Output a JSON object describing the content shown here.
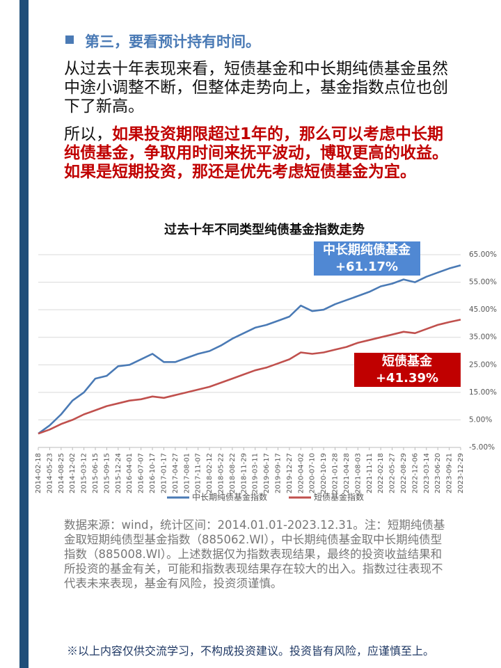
{
  "heading": "第三，要看预计持有时间。",
  "paragraph": "从过去十年表现来看，短债基金和中长期纯债基金虽然中途小调整不断，但整体走势向上，基金指数点位也创下了新高。",
  "conclusion": {
    "lead": "所以，",
    "highlight": "如果投资期限超过1年的，那么可以考虑中长期纯债基金，争取用时间来抚平波动，博取更高的收益。如果是短期投资，那还是优先考虑短债基金为宜。"
  },
  "chart_data": {
    "type": "line",
    "title": "过去十年不同类型纯债基金指数走势",
    "categories": [
      "2014-02-18",
      "2014-05-23",
      "2014-08-25",
      "2014-12-02",
      "2015-03-12",
      "2015-06-15",
      "2015-09-15",
      "2015-12-24",
      "2016-04-01",
      "2016-07-07",
      "2016-10-17",
      "2017-01-17",
      "2017-04-27",
      "2017-08-01",
      "2017-11-07",
      "2018-02-12",
      "2018-05-22",
      "2018-08-22",
      "2018-11-29",
      "2019-03-11",
      "2019-06-17",
      "2019-09-17",
      "2019-12-27",
      "2020-04-02",
      "2020-07-10",
      "2020-10-19",
      "2021-01-28",
      "2021-04-28",
      "2021-08-03",
      "2021-11-11",
      "2022-02-18",
      "2022-05-27",
      "2022-08-29",
      "2022-12-06",
      "2023-03-14",
      "2023-06-20",
      "2023-09-21",
      "2023-12-29"
    ],
    "series": [
      {
        "name": "中长期纯债基金指数",
        "color": "#4a7ab5",
        "values": [
          0,
          3,
          7,
          12,
          15,
          20,
          21,
          24.5,
          25,
          27,
          29,
          26,
          26,
          27.5,
          29,
          30,
          32,
          34.5,
          36.5,
          38.5,
          39.5,
          41,
          42.5,
          46.5,
          44.5,
          45,
          47,
          48.5,
          50,
          51.5,
          53.5,
          54.5,
          56,
          55,
          57,
          58.5,
          60,
          61.17
        ]
      },
      {
        "name": "短债基金指数",
        "color": "#c0504d",
        "values": [
          0,
          1.5,
          3.5,
          5,
          7,
          8.5,
          10,
          11,
          12,
          12.5,
          13.5,
          13,
          14,
          15,
          16,
          17,
          18.5,
          20,
          21.5,
          23,
          24,
          25.5,
          27,
          29.5,
          29,
          29.5,
          30.5,
          31.5,
          33,
          34,
          35,
          36,
          37,
          36.5,
          38,
          39.5,
          40.5,
          41.39
        ]
      }
    ],
    "ylim": [
      -5,
      65
    ],
    "yticks": [
      {
        "value": -5,
        "label": "-5.00%"
      },
      {
        "value": 5,
        "label": "5.00%"
      },
      {
        "value": 15,
        "label": "15.00%"
      },
      {
        "value": 25,
        "label": "25.00%"
      },
      {
        "value": 35,
        "label": "35.00%"
      },
      {
        "value": 45,
        "label": "45.00%"
      },
      {
        "value": 55,
        "label": "55.00%"
      },
      {
        "value": 65,
        "label": "65.00%"
      }
    ],
    "grid": true,
    "legend": "bottom",
    "annotations": [
      {
        "name": "中长期纯债基金",
        "change": "+61.17%",
        "color": "#5088d3"
      },
      {
        "name": "短债基金",
        "change": "+41.39%",
        "color": "#c00000"
      }
    ]
  },
  "note": "数据来源：wind，统计区间：2014.01.01-2023.12.31。注：短期纯债基金取短期纯债型基金指数（885062.WI），中长期纯债基金取中长期纯债型指数（885008.WI）。上述数据仅为指数表现结果，最终的投资收益结果和所投资的基金有关，可能和指数表现结果存在较大的出入。指数过往表现不代表未来表现，基金有风险，投资须谨慎。",
  "footer": "※以上内容仅供交流学习，不构成投资建议。投资皆有风险，应谨慎至上。"
}
